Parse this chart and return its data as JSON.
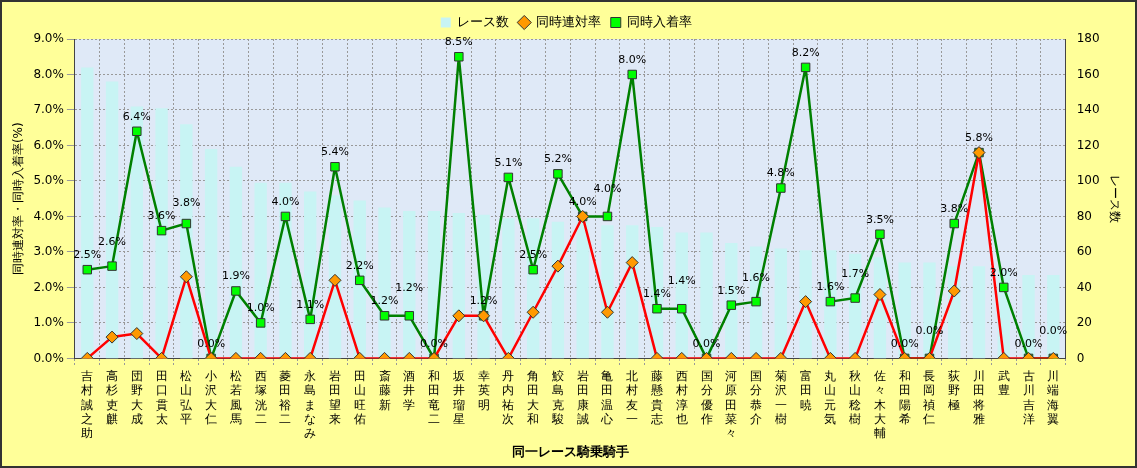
{
  "chart_data": {
    "type": "bar",
    "xlabel": "同一レース騎乗騎手",
    "ylabel": "同時連対率・同時入着率(%)",
    "y2label": "レース数",
    "categories": [
      "吉村誠之助",
      "高杉吏麒",
      "団野大成",
      "田口貫太",
      "松山弘平",
      "小沢大仁",
      "松若風馬",
      "西塚洸二",
      "菱田裕二",
      "永島まなみ",
      "岩田望来",
      "田山旺佑",
      "斎藤新",
      "酒井学",
      "和田竜二",
      "坂井瑠星",
      "幸英明",
      "丹内祐次",
      "角田大和",
      "鮫島克駿",
      "岩田康誠",
      "亀田温心",
      "北村友一",
      "藤懸貴志",
      "西村淳也",
      "国分優作",
      "河原田菜々",
      "国分恭介",
      "菊沢一樹",
      "富田暁",
      "丸山元気",
      "秋山稔樹",
      "佐々木大輔",
      "和田陽希",
      "長岡禎仁",
      "荻野極",
      "川田将雅",
      "武豊",
      "古川吉洋",
      "川端海翼"
    ],
    "series": [
      {
        "name": "レース数",
        "axis": "y2",
        "color": "#c8f4f4",
        "values": [
          164,
          156,
          142,
          141,
          132,
          118,
          108,
          99,
          99,
          94,
          92,
          89,
          85,
          83,
          83,
          82,
          81,
          79,
          79,
          77,
          77,
          75,
          75,
          74,
          71,
          71,
          65,
          63,
          62,
          61,
          61,
          59,
          57,
          54,
          54,
          52,
          52,
          50,
          47,
          47
        ]
      },
      {
        "name": "同時連対率",
        "type": "line",
        "color": "#ff0000",
        "marker": "diamond",
        "values": [
          0,
          0.6,
          0.7,
          0,
          2.3,
          0,
          0,
          0,
          0,
          0,
          2.2,
          0,
          0,
          0,
          0,
          1.2,
          1.2,
          0,
          1.3,
          2.6,
          4.0,
          1.3,
          2.7,
          0,
          0,
          0,
          0,
          0,
          0,
          1.6,
          0,
          0,
          1.8,
          0,
          0,
          1.9,
          5.8,
          0,
          0,
          0
        ]
      },
      {
        "name": "同時入着率",
        "type": "line",
        "color": "#008000",
        "marker": "square",
        "values": [
          2.5,
          2.6,
          6.4,
          3.6,
          3.8,
          0.0,
          1.9,
          1.0,
          4.0,
          1.1,
          5.4,
          2.2,
          1.2,
          1.2,
          0.0,
          8.5,
          1.2,
          5.1,
          2.5,
          5.2,
          4.0,
          4.0,
          8.0,
          1.4,
          1.4,
          0.0,
          1.5,
          1.6,
          4.8,
          8.2,
          1.6,
          1.7,
          3.5,
          0.0,
          0.0,
          3.8,
          5.8,
          2.0,
          0.0,
          0.0
        ],
        "value_labels": [
          "2.5%",
          "2.6%",
          "6.4%",
          "3.6%",
          "3.8%",
          "0.0%",
          "1.9%",
          "1.0%",
          "4.0%",
          "1.1%",
          "5.4%",
          "2.2%",
          "1.2%",
          "1.2%",
          "0.0%",
          "8.5%",
          "1.2%",
          "5.1%",
          "2.5%",
          "5.2%",
          "4.0%",
          "4.0%",
          "8.0%",
          "1.4%",
          "1.4%",
          "0.0%",
          "1.5%",
          "1.6%",
          "4.8%",
          "8.2%",
          "1.6%",
          "1.7%",
          "3.5%",
          "0.0%",
          "0.0%",
          "3.8%",
          "5.8%",
          "2.0%",
          "0.0%",
          "0.0%"
        ]
      }
    ],
    "ylim": [
      0,
      9
    ],
    "yticks": [
      {
        "value": 0,
        "label": "0.0%"
      },
      {
        "value": 1,
        "label": "1.0%"
      },
      {
        "value": 2,
        "label": "2.0%"
      },
      {
        "value": 3,
        "label": "3.0%"
      },
      {
        "value": 4,
        "label": "4.0%"
      },
      {
        "value": 5,
        "label": "5.0%"
      },
      {
        "value": 6,
        "label": "6.0%"
      },
      {
        "value": 7,
        "label": "7.0%"
      },
      {
        "value": 8,
        "label": "8.0%"
      },
      {
        "value": 9,
        "label": "9.0%"
      }
    ],
    "y2lim": [
      0,
      180
    ],
    "y2ticks": [
      0,
      20,
      40,
      60,
      80,
      100,
      120,
      140,
      160,
      180
    ],
    "grid": true,
    "legend": "top"
  }
}
